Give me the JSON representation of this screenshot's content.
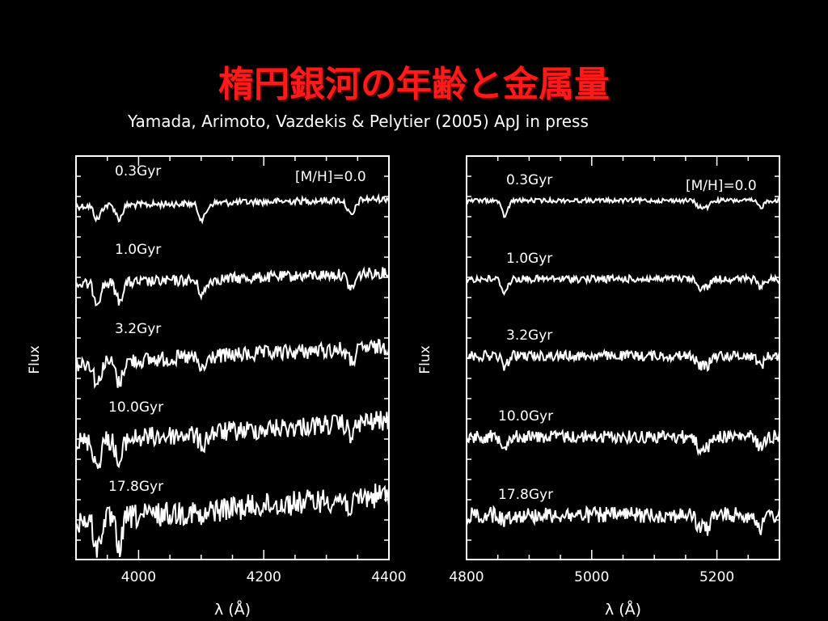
{
  "slide": {
    "title": "楕円銀河の年齢と金属量",
    "subtitle": "Yamada, Arimoto, Vazdekis & Pelytier (2005) ApJ in press"
  },
  "chart_data": [
    {
      "type": "line",
      "xlabel": "λ (Å)",
      "ylabel": "Flux",
      "xlim": [
        3900,
        4400
      ],
      "xticks": [
        4000,
        4200,
        4400
      ],
      "annotation": "[M/H]=0.0",
      "lines_A": [
        3934,
        3969,
        4102,
        4340
      ],
      "series": [
        {
          "name": "0.3Gyr",
          "depth": 1
        },
        {
          "name": "1.0Gyr",
          "depth": 2
        },
        {
          "name": "3.2Gyr",
          "depth": 3
        },
        {
          "name": "10.0Gyr",
          "depth": 4
        },
        {
          "name": "17.8Gyr",
          "depth": 5
        }
      ]
    },
    {
      "type": "line",
      "xlabel": "λ (Å)",
      "ylabel": "Flux",
      "xlim": [
        4800,
        5300
      ],
      "xticks": [
        4800,
        5000,
        5200
      ],
      "annotation": "[M/H]=0.0",
      "lines_A": [
        4861,
        5172,
        5184,
        5270
      ],
      "series": [
        {
          "name": "0.3Gyr",
          "depth": 1
        },
        {
          "name": "1.0Gyr",
          "depth": 2
        },
        {
          "name": "3.2Gyr",
          "depth": 3
        },
        {
          "name": "10.0Gyr",
          "depth": 4
        },
        {
          "name": "17.8Gyr",
          "depth": 5
        }
      ]
    }
  ]
}
